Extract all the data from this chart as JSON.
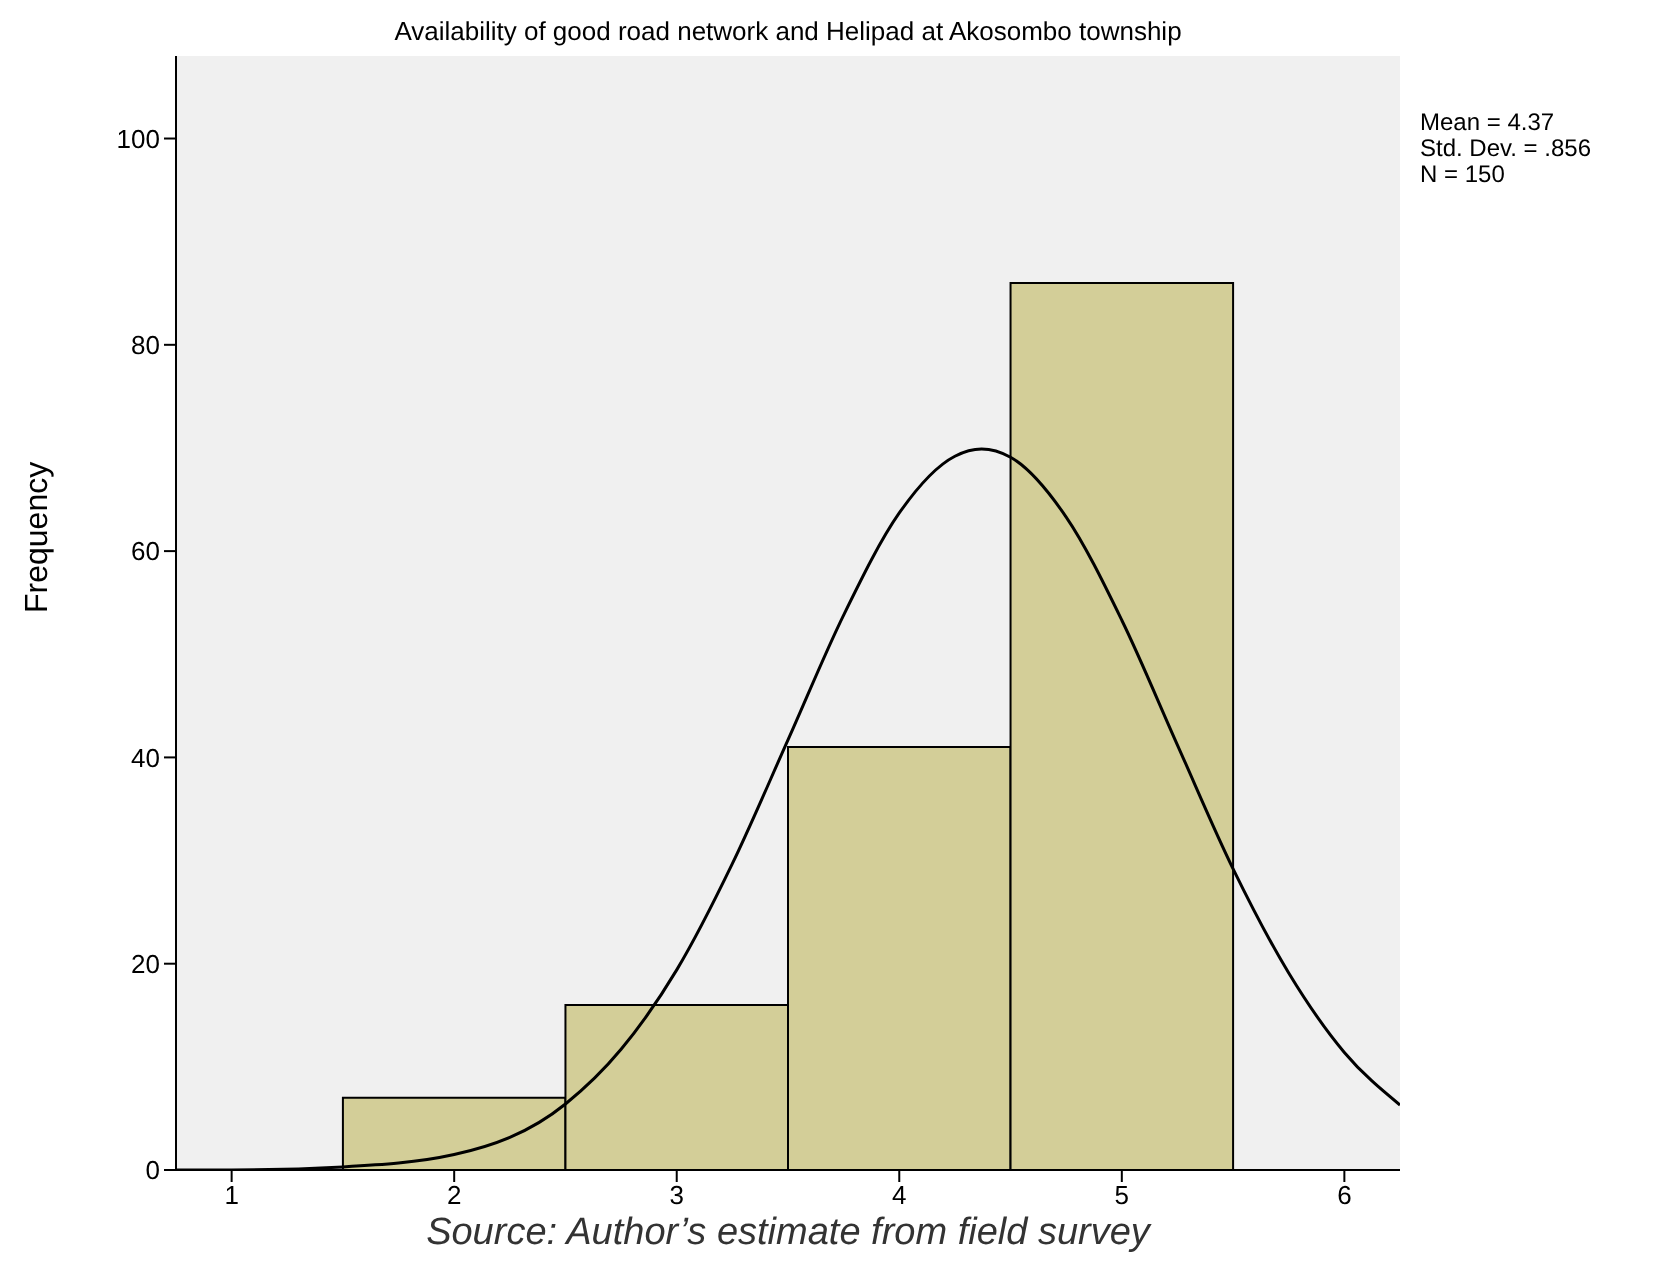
{
  "chart_data": {
    "type": "histogram",
    "title": "Availability of good road network and Helipad at Akosombo township",
    "ylabel": "Frequency",
    "bins": [
      1.5,
      2.5,
      3.5,
      4.5,
      5.5
    ],
    "values": [
      7,
      16,
      41,
      86
    ],
    "color": "#d3ce98",
    "series": [
      {
        "type": "line",
        "color": "#000000",
        "x": [
          0.75,
          1,
          1.5,
          2,
          2.5,
          2.75,
          3,
          3.25,
          3.5,
          3.75,
          4,
          4.25,
          4.37,
          4.5,
          4.75,
          5,
          5.25,
          5.5,
          5.75,
          6,
          6.25
        ],
        "values": [
          0,
          0,
          0.3,
          1.5,
          6.4,
          11.7,
          19.4,
          29.7,
          41.7,
          53.8,
          63.7,
          69.2,
          69.9,
          69.1,
          63.3,
          53.3,
          41.2,
          29.2,
          19.1,
          11.4,
          6.3
        ]
      }
    ],
    "xlim": [
      0.75,
      6.25
    ],
    "xticks": [
      1,
      2,
      3,
      4,
      5,
      6
    ],
    "ylim": [
      0,
      108
    ],
    "yticks": [
      0,
      20,
      40,
      60,
      80,
      100
    ],
    "annotations": [
      "Mean = 4.37",
      "Std. Dev. = .856",
      "N = 150",
      "Source: Author’s estimate from field survey"
    ]
  }
}
